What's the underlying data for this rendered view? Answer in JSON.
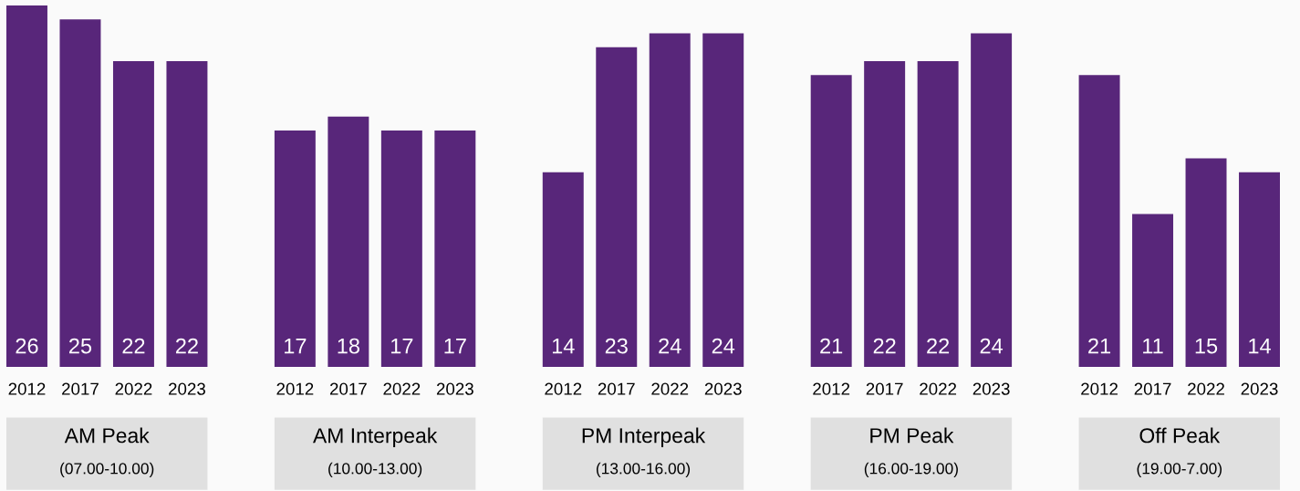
{
  "chart_data": {
    "type": "bar",
    "categories": [
      "AM Peak\n(07.00-10.00)",
      "AM Interpeak\n(10.00-13.00)",
      "PM Interpeak\n(13.00-16.00)",
      "PM Peak\n(16.00-19.00)",
      "Off Peak\n(19.00-7.00)"
    ],
    "series": [
      {
        "name": "2012",
        "color": "#58267a",
        "values": [
          26,
          17,
          14,
          21,
          21
        ]
      },
      {
        "name": "2017",
        "color": "#58267a",
        "values": [
          25,
          18,
          23,
          22,
          11
        ]
      },
      {
        "name": "2022",
        "color": "#58267a",
        "values": [
          22,
          17,
          24,
          22,
          15
        ]
      },
      {
        "name": "2023",
        "color": "#58267a",
        "values": [
          22,
          17,
          24,
          24,
          14
        ]
      }
    ],
    "data_labels": true
  }
}
